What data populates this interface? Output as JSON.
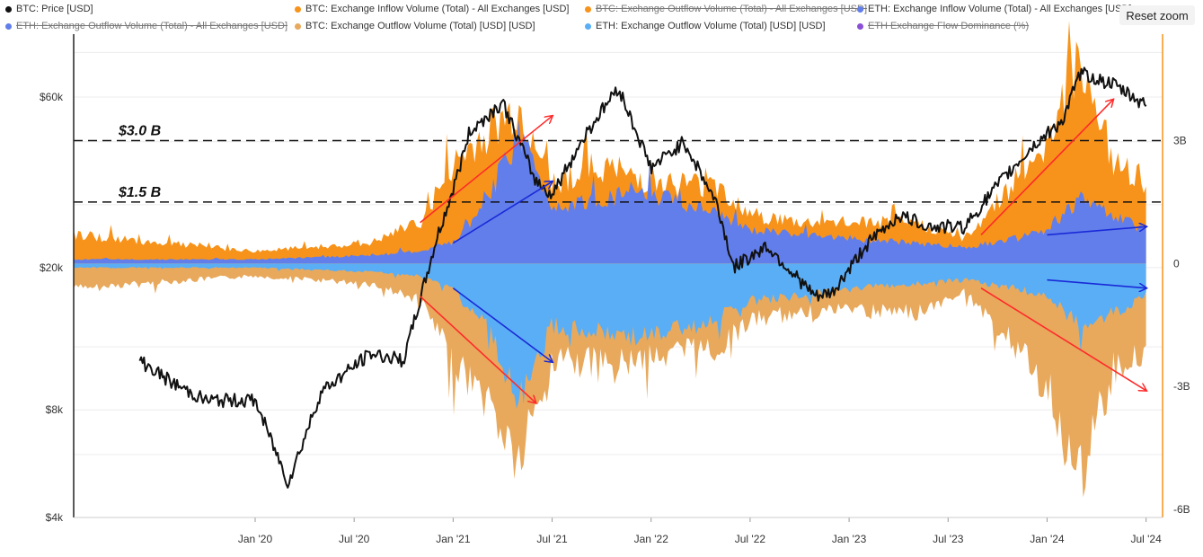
{
  "legend": [
    {
      "label": "BTC: Price [USD]",
      "color": "#111111",
      "hidden": false
    },
    {
      "label": "BTC: Exchange Inflow Volume (Total) - All Exchanges [USD]",
      "color": "#f7931a",
      "hidden": false
    },
    {
      "label": "BTC: Exchange Outflow Volume (Total) - All Exchanges [USD]",
      "color": "#f7931a",
      "hidden": true
    },
    {
      "label": "ETH: Exchange Inflow Volume (Total) - All Exchanges [USD]",
      "color": "#627eea",
      "hidden": false
    },
    {
      "label": "ETH: Exchange Outflow Volume (Total) - All Exchanges [USD]",
      "color": "#627eea",
      "hidden": true
    },
    {
      "label": "BTC: Exchange Outflow Volume (Total) [USD] [USD]",
      "color": "#e8a95c",
      "hidden": false
    },
    {
      "label": "ETH: Exchange Outflow Volume (Total) [USD] [USD]",
      "color": "#5aaef5",
      "hidden": false
    },
    {
      "label": "ETH Exchange Flow Dominance (%)",
      "color": "#8a4fd6",
      "hidden": true
    }
  ],
  "reset_zoom_label": "Reset zoom",
  "chart_data": {
    "type": "area",
    "x_ticks": [
      "Jan '20",
      "Jul '20",
      "Jan '21",
      "Jul '21",
      "Jan '22",
      "Jul '22",
      "Jan '23",
      "Jul '23",
      "Jan '24",
      "Jul '24"
    ],
    "x_range": [
      "2019-02",
      "2024-08"
    ],
    "y_left": {
      "scale": "log",
      "ticks": [
        "$4k",
        "$8k",
        "$20k",
        "$60k"
      ],
      "tick_values": [
        4000,
        8000,
        20000,
        60000
      ],
      "range": [
        4000,
        90000
      ]
    },
    "y_right": {
      "ticks": [
        "3B",
        "0",
        "-3B",
        "-6B"
      ],
      "tick_values": [
        3,
        0,
        -3,
        -6
      ],
      "unit": "B USD",
      "range": [
        -6.2,
        5.6
      ]
    },
    "reference_lines": [
      {
        "label": "$3.0 B",
        "value": 3.0
      },
      {
        "label": "$1.5 B",
        "value": 1.5
      }
    ],
    "series": [
      {
        "name": "BTC: Price [USD]",
        "axis": "left",
        "color": "#111111",
        "x": [
          "2019-06",
          "2019-08",
          "2019-10",
          "2020-01",
          "2020-03",
          "2020-05",
          "2020-08",
          "2020-10",
          "2020-12",
          "2021-01",
          "2021-02",
          "2021-04",
          "2021-06",
          "2021-07",
          "2021-09",
          "2021-11",
          "2022-01",
          "2022-03",
          "2022-05",
          "2022-06",
          "2022-08",
          "2022-11",
          "2022-12",
          "2023-02",
          "2023-04",
          "2023-06",
          "2023-08",
          "2023-10",
          "2023-12",
          "2024-02",
          "2024-03",
          "2024-05",
          "2024-07"
        ],
        "values": [
          11000,
          9500,
          8500,
          8500,
          5000,
          9000,
          11500,
          11000,
          24000,
          33000,
          48000,
          58000,
          35000,
          32000,
          47000,
          64000,
          38000,
          45000,
          30000,
          20000,
          23000,
          16500,
          17000,
          23000,
          28000,
          26000,
          26000,
          34000,
          43000,
          52000,
          70000,
          65000,
          57000
        ]
      },
      {
        "name": "BTC: Exchange Inflow Volume (Total) - All Exchanges [USD]",
        "axis": "right",
        "color": "#f7931a",
        "x": [
          "2019-02",
          "2020-01",
          "2020-08",
          "2020-11",
          "2021-01",
          "2021-03",
          "2021-05",
          "2021-07",
          "2021-10",
          "2022-01",
          "2022-05",
          "2022-07",
          "2022-10",
          "2023-01",
          "2023-05",
          "2023-08",
          "2023-11",
          "2024-01",
          "2024-03",
          "2024-05",
          "2024-07"
        ],
        "values": [
          0.7,
          0.3,
          0.5,
          1.0,
          2.4,
          3.2,
          3.8,
          2.0,
          2.4,
          2.0,
          1.9,
          1.2,
          1.0,
          1.0,
          1.0,
          0.6,
          2.0,
          3.0,
          5.2,
          2.4,
          2.0
        ]
      },
      {
        "name": "ETH: Exchange Inflow Volume (Total) - All Exchanges [USD]",
        "axis": "right",
        "color": "#627eea",
        "x": [
          "2019-02",
          "2020-01",
          "2020-08",
          "2020-11",
          "2021-01",
          "2021-03",
          "2021-05",
          "2021-07",
          "2021-10",
          "2022-01",
          "2022-05",
          "2022-07",
          "2022-10",
          "2023-01",
          "2023-05",
          "2023-08",
          "2023-11",
          "2024-01",
          "2024-03",
          "2024-05",
          "2024-07"
        ],
        "values": [
          0.1,
          0.1,
          0.2,
          0.3,
          0.5,
          1.5,
          3.2,
          1.4,
          1.6,
          1.7,
          1.2,
          0.8,
          0.7,
          0.6,
          0.5,
          0.4,
          0.6,
          0.8,
          1.6,
          1.2,
          0.8
        ]
      },
      {
        "name": "BTC: Exchange Outflow Volume (Total) [USD] [USD]",
        "axis": "right",
        "color": "#e8a95c",
        "x": [
          "2019-02",
          "2020-01",
          "2020-08",
          "2020-11",
          "2021-01",
          "2021-03",
          "2021-05",
          "2021-07",
          "2021-10",
          "2022-01",
          "2022-05",
          "2022-07",
          "2022-10",
          "2023-01",
          "2023-05",
          "2023-08",
          "2023-11",
          "2024-01",
          "2024-03",
          "2024-05",
          "2024-07"
        ],
        "values": [
          -0.6,
          -0.3,
          -0.5,
          -0.9,
          -2.4,
          -3.3,
          -4.9,
          -2.3,
          -2.5,
          -2.2,
          -2.1,
          -1.4,
          -1.2,
          -1.1,
          -1.2,
          -0.7,
          -2.0,
          -3.0,
          -5.4,
          -2.6,
          -2.1
        ]
      },
      {
        "name": "ETH: Exchange Outflow Volume (Total) [USD] [USD]",
        "axis": "right",
        "color": "#5aaef5",
        "x": [
          "2019-02",
          "2020-01",
          "2020-08",
          "2020-11",
          "2021-01",
          "2021-03",
          "2021-05",
          "2021-07",
          "2021-10",
          "2022-01",
          "2022-05",
          "2022-07",
          "2022-10",
          "2023-01",
          "2023-05",
          "2023-08",
          "2023-11",
          "2024-01",
          "2024-03",
          "2024-05",
          "2024-07"
        ],
        "values": [
          -0.1,
          -0.1,
          -0.2,
          -0.3,
          -0.6,
          -1.5,
          -3.4,
          -1.5,
          -1.7,
          -1.8,
          -1.3,
          -0.9,
          -0.8,
          -0.6,
          -0.5,
          -0.4,
          -0.6,
          -0.8,
          -1.5,
          -1.2,
          -0.8
        ]
      }
    ],
    "annotation_arrows": [
      {
        "color": "#ff2a2a",
        "from": [
          "2020-11",
          1.0
        ],
        "to": [
          "2021-07",
          3.6
        ]
      },
      {
        "color": "#1a2ad8",
        "from": [
          "2021-01",
          0.5
        ],
        "to": [
          "2021-07",
          2.0
        ]
      },
      {
        "color": "#ff2a2a",
        "from": [
          "2020-11",
          -0.8
        ],
        "to": [
          "2021-06",
          -3.4
        ]
      },
      {
        "color": "#1a2ad8",
        "from": [
          "2021-01",
          -0.6
        ],
        "to": [
          "2021-07",
          -2.4
        ]
      },
      {
        "color": "#ff2a2a",
        "from": [
          "2023-09",
          0.7
        ],
        "to": [
          "2024-05",
          4.0
        ]
      },
      {
        "color": "#1a2ad8",
        "from": [
          "2024-01",
          0.7
        ],
        "to": [
          "2024-07",
          0.9
        ]
      },
      {
        "color": "#1a2ad8",
        "from": [
          "2024-01",
          -0.4
        ],
        "to": [
          "2024-07",
          -0.6
        ]
      },
      {
        "color": "#ff2a2a",
        "from": [
          "2023-09",
          -0.6
        ],
        "to": [
          "2024-07",
          -3.1
        ]
      }
    ]
  }
}
